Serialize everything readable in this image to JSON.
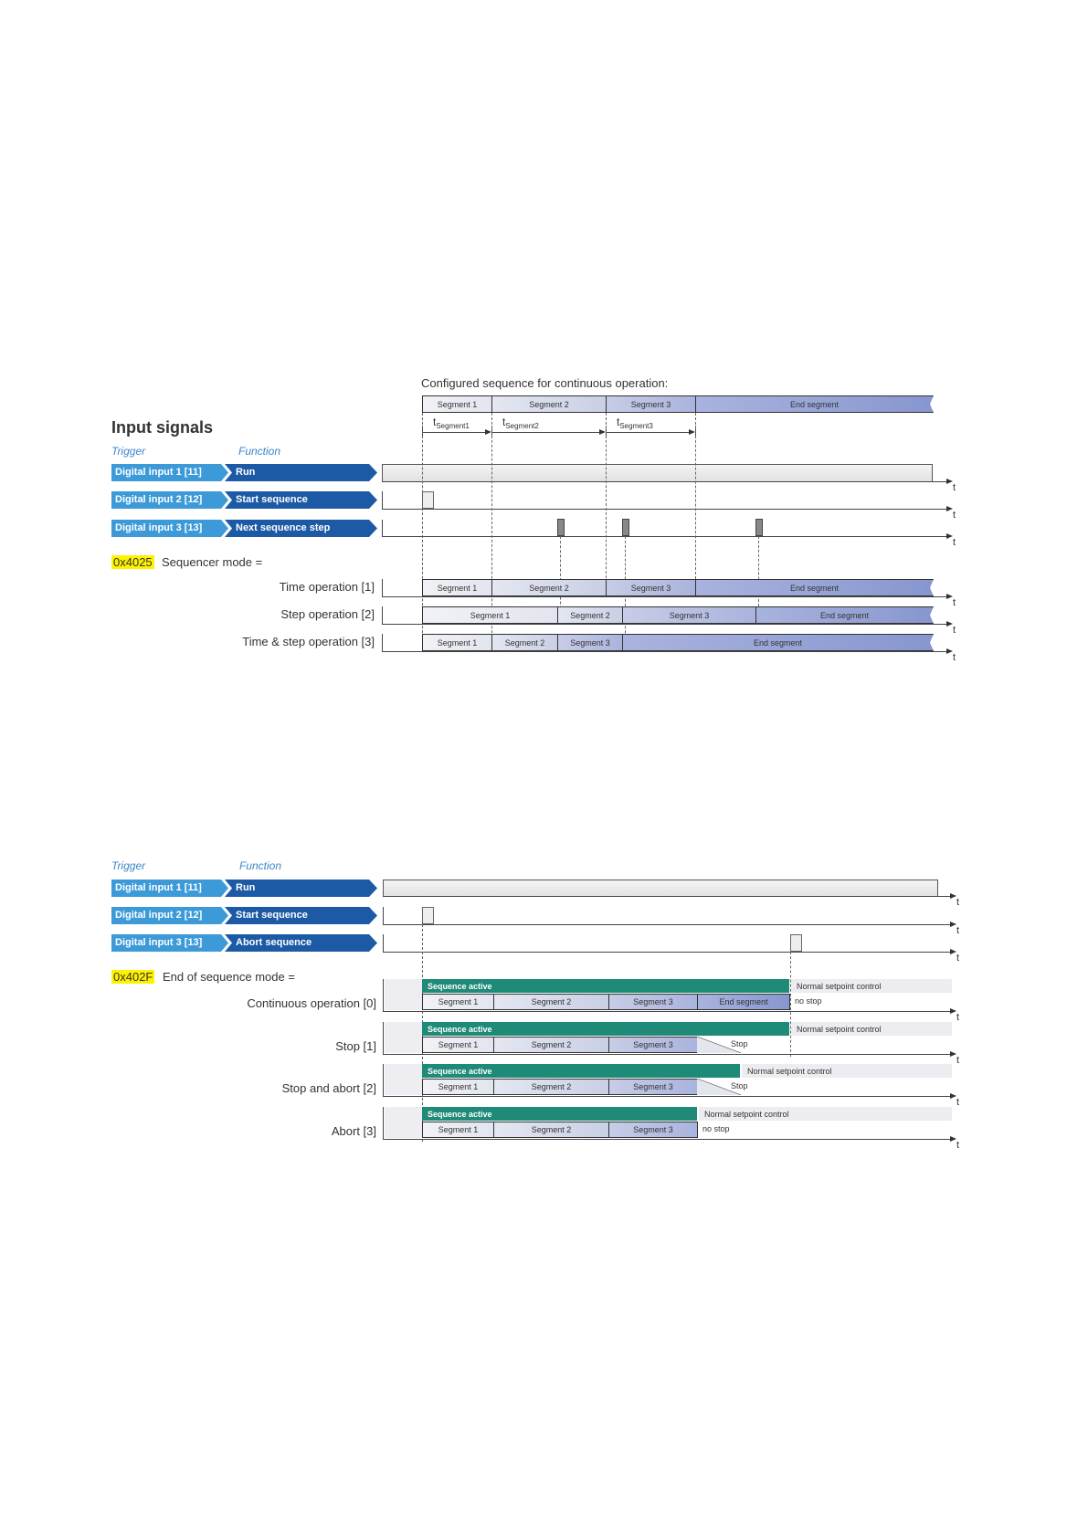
{
  "diagram1": {
    "heading": "Input signals",
    "trigger_header": "Trigger",
    "function_header": "Function",
    "config_title": "Configured sequence for continuous operation:",
    "config_segments": [
      "Segment 1",
      "Segment 2",
      "Segment 3",
      "End segment"
    ],
    "t_labels": [
      {
        "t": "t",
        "sub": "Segment1"
      },
      {
        "t": "t",
        "sub": "Segment2"
      },
      {
        "t": "t",
        "sub": "Segment3"
      }
    ],
    "axis_label": "t",
    "signals": [
      {
        "trigger": "Digital input 1 [11]",
        "function": "Run"
      },
      {
        "trigger": "Digital input 2 [12]",
        "function": "Start sequence"
      },
      {
        "trigger": "Digital input 3 [13]",
        "function": "Next sequence step"
      }
    ],
    "param_code": "0x4025",
    "param_label": "Sequencer mode =",
    "modes": [
      {
        "label": "Time operation [1]",
        "segments": [
          "Segment 1",
          "Segment 2",
          "Segment 3",
          "End segment"
        ]
      },
      {
        "label": "Step operation [2]",
        "segments": [
          "Segment 1",
          "Segment 2",
          "Segment 3",
          "End segment"
        ]
      },
      {
        "label": "Time & step operation [3]",
        "segments": [
          "Segment 1",
          "Segment 2",
          "Segment 3",
          "End segment"
        ]
      }
    ]
  },
  "diagram2": {
    "trigger_header": "Trigger",
    "function_header": "Function",
    "axis_label": "t",
    "signals": [
      {
        "trigger": "Digital input 1 [11]",
        "function": "Run"
      },
      {
        "trigger": "Digital input 2 [12]",
        "function": "Start sequence"
      },
      {
        "trigger": "Digital input 3 [13]",
        "function": "Abort sequence"
      }
    ],
    "param_code": "0x402F",
    "param_label": "End of sequence mode =",
    "modes": [
      {
        "label": "Continuous operation [0]",
        "active": "Sequence active",
        "segments": [
          "Segment 1",
          "Segment 2",
          "Segment 3",
          "End segment"
        ],
        "after": "Normal setpoint control",
        "after_sub": "no stop"
      },
      {
        "label": "Stop [1]",
        "active": "Sequence active",
        "segments": [
          "Segment 1",
          "Segment 2",
          "Segment 3"
        ],
        "after": "Normal setpoint control",
        "after_sub": "Stop"
      },
      {
        "label": "Stop and abort [2]",
        "active": "Sequence active",
        "segments": [
          "Segment 1",
          "Segment 2",
          "Segment 3"
        ],
        "after": "Normal setpoint control",
        "after_sub": "Stop"
      },
      {
        "label": "Abort [3]",
        "active": "Sequence active",
        "segments": [
          "Segment 1",
          "Segment 2",
          "Segment 3"
        ],
        "after": "Normal setpoint control",
        "after_sub": "no stop"
      }
    ]
  },
  "colors": {
    "trigger": "#3d9ad8",
    "function": "#1c5aa6",
    "active": "#1f8a78",
    "highlight": "#fff200"
  }
}
